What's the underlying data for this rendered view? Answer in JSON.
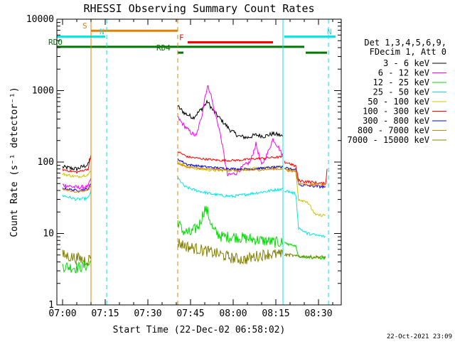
{
  "chart_data": {
    "type": "line",
    "title": "RHESSI Observing Summary Count Rates",
    "xlabel": "Start Time (22-Dec-02 06:58:02)",
    "ylabel": "Count Rate (s⁻¹ detector⁻¹)",
    "yscale": "log",
    "ylim": [
      1,
      10000
    ],
    "xlim_minutes": [
      -2,
      98
    ],
    "x_ticks": [
      {
        "m": 0,
        "label": "07:00"
      },
      {
        "m": 15,
        "label": "07:15"
      },
      {
        "m": 30,
        "label": "07:30"
      },
      {
        "m": 45,
        "label": "07:45"
      },
      {
        "m": 60,
        "label": "08:00"
      },
      {
        "m": 75,
        "label": "08:15"
      },
      {
        "m": 90,
        "label": "08:30"
      }
    ],
    "y_ticks": [
      {
        "v": 1,
        "label": "1"
      },
      {
        "v": 10,
        "label": "10"
      },
      {
        "v": 100,
        "label": "100"
      },
      {
        "v": 1000,
        "label": "1000"
      },
      {
        "v": 10000,
        "label": "10000"
      }
    ],
    "legend_header": [
      "Det 1,3,4,5,6,9,",
      "FDecim 1, Att 0"
    ],
    "timestamp": "22-Oct-2021 23:09",
    "gaps": [
      [
        10,
        40.5
      ],
      [
        77.5,
        77.8
      ]
    ],
    "series": [
      {
        "name": "3 - 6 keV",
        "color": "#000000",
        "noise": 0.03,
        "points": [
          [
            0,
            85
          ],
          [
            5,
            80
          ],
          [
            9,
            92
          ],
          [
            10,
            125
          ],
          [
            40.5,
            600
          ],
          [
            43,
            480
          ],
          [
            46,
            420
          ],
          [
            49,
            560
          ],
          [
            51,
            700
          ],
          [
            53,
            520
          ],
          [
            56,
            380
          ],
          [
            59,
            280
          ],
          [
            62,
            230
          ],
          [
            65,
            220
          ],
          [
            68,
            240
          ],
          [
            71,
            230
          ],
          [
            74,
            250
          ],
          [
            76,
            240
          ],
          [
            77.5,
            230
          ]
        ]
      },
      {
        "name": "6 - 12 keV",
        "color": "#ff00ff",
        "noise": 0.03,
        "points": [
          [
            0,
            48
          ],
          [
            5,
            44
          ],
          [
            9,
            45
          ],
          [
            10,
            60
          ],
          [
            40.5,
            420
          ],
          [
            42,
            350
          ],
          [
            45,
            260
          ],
          [
            47,
            230
          ],
          [
            49,
            450
          ],
          [
            50,
            800
          ],
          [
            51,
            1150
          ],
          [
            52,
            950
          ],
          [
            53,
            600
          ],
          [
            55,
            300
          ],
          [
            56,
            190
          ],
          [
            57,
            110
          ],
          [
            58,
            65
          ],
          [
            61,
            70
          ],
          [
            64,
            90
          ],
          [
            66,
            100
          ],
          [
            68,
            180
          ],
          [
            70,
            90
          ],
          [
            72,
            130
          ],
          [
            74,
            210
          ],
          [
            76,
            160
          ],
          [
            77.5,
            120
          ]
        ]
      },
      {
        "name": "12 - 25 keV",
        "color": "#00dd00",
        "noise": 0.08,
        "points": [
          [
            0,
            3.5
          ],
          [
            5,
            3.3
          ],
          [
            9,
            3.6
          ],
          [
            10,
            4.0
          ],
          [
            40.5,
            15
          ],
          [
            42,
            11
          ],
          [
            45,
            10
          ],
          [
            48,
            13
          ],
          [
            50,
            22
          ],
          [
            51,
            20
          ],
          [
            53,
            11
          ],
          [
            56,
            9
          ],
          [
            60,
            9
          ],
          [
            65,
            8.5
          ],
          [
            70,
            8
          ],
          [
            75,
            7.5
          ],
          [
            77.5,
            7.5
          ]
        ]
      },
      {
        "name": "25 - 50 keV",
        "color": "#00e8e8",
        "noise": 0.02,
        "points": [
          [
            0,
            34
          ],
          [
            5,
            30
          ],
          [
            9,
            31
          ],
          [
            10,
            40
          ],
          [
            40.5,
            60
          ],
          [
            43,
            45
          ],
          [
            47,
            40
          ],
          [
            52,
            36
          ],
          [
            56,
            34
          ],
          [
            60,
            33
          ],
          [
            64,
            35
          ],
          [
            68,
            37
          ],
          [
            72,
            39
          ],
          [
            75,
            41
          ],
          [
            77.5,
            42
          ]
        ]
      },
      {
        "name": "50 - 100 keV",
        "color": "#c8c800",
        "noise": 0.02,
        "points": [
          [
            0,
            68
          ],
          [
            5,
            62
          ],
          [
            9,
            67
          ],
          [
            10,
            75
          ],
          [
            40.5,
            100
          ],
          [
            44,
            86
          ],
          [
            48,
            80
          ],
          [
            54,
            76
          ],
          [
            58,
            77
          ],
          [
            62,
            78
          ],
          [
            66,
            80
          ],
          [
            70,
            82
          ],
          [
            74,
            85
          ],
          [
            77.5,
            86
          ]
        ]
      },
      {
        "name": "100 - 300 keV",
        "color": "#ff0000",
        "noise": 0.015,
        "points": [
          [
            0,
            78
          ],
          [
            5,
            72
          ],
          [
            9,
            80
          ],
          [
            10,
            125
          ],
          [
            40.5,
            140
          ],
          [
            44,
            118
          ],
          [
            50,
            110
          ],
          [
            56,
            105
          ],
          [
            62,
            106
          ],
          [
            66,
            110
          ],
          [
            70,
            113
          ],
          [
            74,
            116
          ],
          [
            77.5,
            118
          ]
        ]
      },
      {
        "name": "300 - 800 keV",
        "color": "#0000ff",
        "noise": 0.015,
        "points": [
          [
            0,
            43
          ],
          [
            5,
            40
          ],
          [
            9,
            42
          ],
          [
            10,
            50
          ],
          [
            40.5,
            110
          ],
          [
            44,
            92
          ],
          [
            50,
            86
          ],
          [
            56,
            82
          ],
          [
            62,
            80
          ],
          [
            66,
            80
          ],
          [
            70,
            82
          ],
          [
            74,
            84
          ],
          [
            77.5,
            85
          ]
        ]
      },
      {
        "name": "800 - 7000 keV",
        "color": "#e08000",
        "noise": 0.015,
        "points": [
          [
            0,
            42
          ],
          [
            5,
            38
          ],
          [
            9,
            41
          ],
          [
            10,
            48
          ],
          [
            40.5,
            95
          ],
          [
            44,
            85
          ],
          [
            50,
            80
          ],
          [
            56,
            78
          ],
          [
            62,
            76
          ],
          [
            66,
            77
          ],
          [
            70,
            78
          ],
          [
            74,
            80
          ],
          [
            77.5,
            80
          ]
        ]
      },
      {
        "name": "7000 - 15000 keV",
        "color": "#808000",
        "noise": 0.08,
        "points": [
          [
            0,
            5.0
          ],
          [
            5,
            4.5
          ],
          [
            9,
            4.2
          ],
          [
            10,
            4.8
          ],
          [
            40.5,
            7.5
          ],
          [
            44,
            6.5
          ],
          [
            48,
            6.0
          ],
          [
            52,
            5.5
          ],
          [
            56,
            5.0
          ],
          [
            60,
            4.5
          ],
          [
            64,
            4.3
          ],
          [
            68,
            4.8
          ],
          [
            72,
            5.2
          ],
          [
            77.5,
            5.0
          ]
        ]
      }
    ],
    "after_series": [
      {
        "color": "#ff0000",
        "points": [
          [
            78,
            100
          ],
          [
            80,
            95
          ],
          [
            81,
            90
          ],
          [
            82,
            88
          ],
          [
            83,
            55
          ],
          [
            88,
            52
          ],
          [
            91,
            50
          ],
          [
            92.5,
            50
          ],
          [
            93,
            80
          ]
        ]
      },
      {
        "color": "#c8c800",
        "points": [
          [
            78,
            80
          ],
          [
            80,
            78
          ],
          [
            81,
            76
          ],
          [
            82,
            75
          ],
          [
            83,
            30
          ],
          [
            86,
            28
          ],
          [
            89,
            18
          ],
          [
            92.5,
            18
          ]
        ]
      },
      {
        "color": "#0000ff",
        "points": [
          [
            78,
            82
          ],
          [
            80,
            80
          ],
          [
            82,
            78
          ],
          [
            83,
            48
          ],
          [
            88,
            46
          ],
          [
            92.5,
            45
          ]
        ]
      },
      {
        "color": "#e08000",
        "points": [
          [
            78,
            78
          ],
          [
            80,
            76
          ],
          [
            82,
            75
          ],
          [
            83,
            50
          ],
          [
            88,
            48
          ],
          [
            92.5,
            48
          ]
        ]
      },
      {
        "color": "#00e8e8",
        "points": [
          [
            78,
            40
          ],
          [
            80,
            38
          ],
          [
            82,
            36
          ],
          [
            83,
            12
          ],
          [
            86,
            10
          ],
          [
            89,
            9.5
          ],
          [
            92.5,
            9
          ]
        ]
      },
      {
        "color": "#00dd00",
        "points": [
          [
            78,
            7.5
          ],
          [
            80,
            7.0
          ],
          [
            82,
            6.8
          ],
          [
            83,
            4.8
          ],
          [
            88,
            4.6
          ],
          [
            92.5,
            4.5
          ]
        ]
      },
      {
        "color": "#808000",
        "points": [
          [
            78,
            5.0
          ],
          [
            80,
            5.0
          ],
          [
            82,
            4.8
          ],
          [
            83,
            4.8
          ],
          [
            88,
            4.7
          ],
          [
            92.5,
            4.7
          ]
        ]
      }
    ],
    "flags": [
      {
        "label": "S",
        "start": 10,
        "end": 40.5,
        "level": 6900,
        "color": "#e08000",
        "labelColor": "#e08000"
      },
      {
        "label": "N",
        "start": -2,
        "end": 15,
        "level": 5700,
        "color": "#00e8e8",
        "labelColor": "#00e8e8"
      },
      {
        "label": "N",
        "start": 78,
        "end": 96,
        "level": 5700,
        "color": "#00e8e8",
        "labelColor": "#00e8e8"
      },
      {
        "label": "F",
        "start": 44,
        "end": 74,
        "level": 4750,
        "color": "#ff0000",
        "labelColor": "#ff0000"
      },
      {
        "label": "RDO",
        "start": -2,
        "end": 85,
        "level": 4100,
        "color": "#007700",
        "labelColor": "#007700"
      },
      {
        "label": "",
        "start": 85.5,
        "end": 93,
        "level": 3400,
        "color": "#007700",
        "labelColor": "#007700"
      },
      {
        "label": "RD4",
        "start": 40.5,
        "end": 42.5,
        "level": 3400,
        "color": "#007700",
        "labelColor": "#007700"
      }
    ],
    "vlines": [
      {
        "m": 10,
        "color": "#e08000",
        "dash": false
      },
      {
        "m": 15.5,
        "color": "#00e8e8",
        "dash": true
      },
      {
        "m": 40.5,
        "color": "#e08000",
        "dash": true
      },
      {
        "m": 77.5,
        "color": "#00e8e8",
        "dash": false
      },
      {
        "m": 93.5,
        "color": "#00e8e8",
        "dash": true
      }
    ]
  }
}
